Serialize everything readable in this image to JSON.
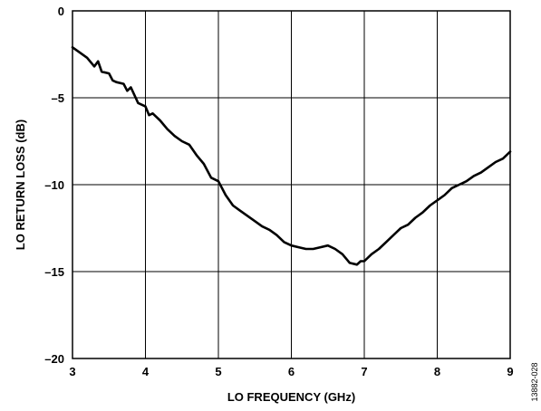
{
  "chart_data": {
    "type": "line",
    "xlabel": "LO FREQUENCY (GHz)",
    "ylabel": "LO RETURN LOSS (dB)",
    "xlim": [
      3,
      9
    ],
    "ylim": [
      -20,
      0
    ],
    "x_ticks": [
      3,
      4,
      5,
      6,
      7,
      8,
      9
    ],
    "y_ticks": [
      0,
      -5,
      -10,
      -15,
      -20
    ],
    "x_tick_labels": [
      "3",
      "4",
      "5",
      "6",
      "7",
      "8",
      "9"
    ],
    "y_tick_labels": [
      "0",
      "–5",
      "–10",
      "–15",
      "–20"
    ],
    "grid": true,
    "series": [
      {
        "x": [
          3.0,
          3.1,
          3.2,
          3.3,
          3.35,
          3.4,
          3.5,
          3.55,
          3.6,
          3.7,
          3.75,
          3.8,
          3.9,
          4.0,
          4.05,
          4.1,
          4.2,
          4.3,
          4.4,
          4.5,
          4.6,
          4.7,
          4.8,
          4.9,
          5.0,
          5.1,
          5.2,
          5.3,
          5.4,
          5.5,
          5.6,
          5.7,
          5.8,
          5.9,
          6.0,
          6.1,
          6.2,
          6.3,
          6.4,
          6.5,
          6.6,
          6.7,
          6.8,
          6.9,
          6.95,
          7.0,
          7.1,
          7.2,
          7.3,
          7.4,
          7.5,
          7.6,
          7.7,
          7.8,
          7.9,
          8.0,
          8.1,
          8.2,
          8.3,
          8.4,
          8.5,
          8.6,
          8.7,
          8.8,
          8.9,
          9.0
        ],
        "values": [
          -2.1,
          -2.4,
          -2.7,
          -3.2,
          -2.9,
          -3.5,
          -3.6,
          -4.0,
          -4.1,
          -4.2,
          -4.6,
          -4.4,
          -5.3,
          -5.5,
          -6.0,
          -5.9,
          -6.3,
          -6.8,
          -7.2,
          -7.5,
          -7.7,
          -8.3,
          -8.8,
          -9.6,
          -9.8,
          -10.6,
          -11.2,
          -11.5,
          -11.8,
          -12.1,
          -12.4,
          -12.6,
          -12.9,
          -13.3,
          -13.5,
          -13.6,
          -13.7,
          -13.7,
          -13.6,
          -13.5,
          -13.7,
          -14.0,
          -14.5,
          -14.6,
          -14.4,
          -14.4,
          -14.0,
          -13.7,
          -13.3,
          -12.9,
          -12.5,
          -12.3,
          -11.9,
          -11.6,
          -11.2,
          -10.9,
          -10.6,
          -10.2,
          -10.0,
          -9.8,
          -9.5,
          -9.3,
          -9.0,
          -8.7,
          -8.5,
          -8.1
        ]
      }
    ]
  },
  "figure_id": "13882-028"
}
